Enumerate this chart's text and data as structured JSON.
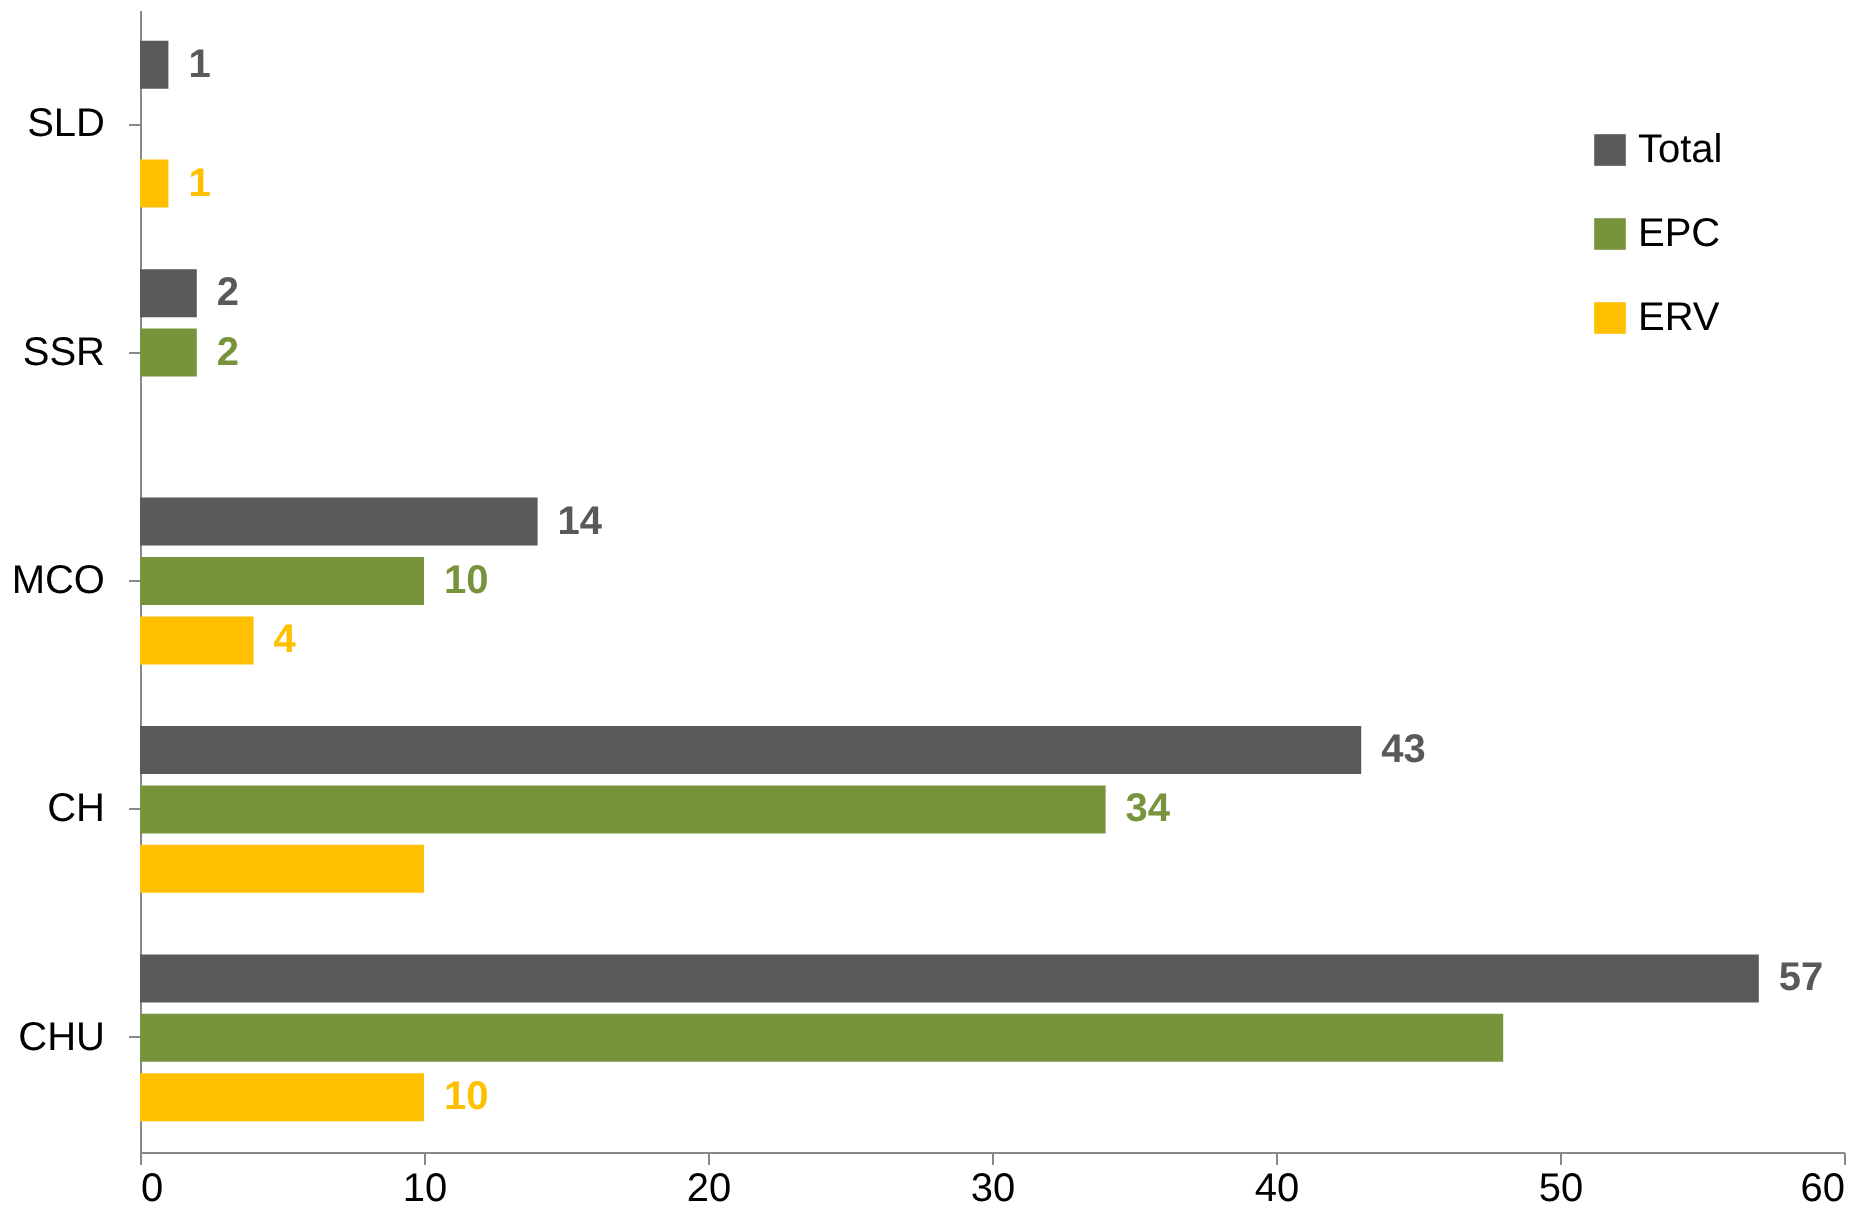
{
  "chart_data": {
    "type": "bar",
    "orientation": "horizontal",
    "categories": [
      "SLD",
      "SSR",
      "MCO",
      "CH",
      "CHU"
    ],
    "series": [
      {
        "name": "Total",
        "color": "#595959",
        "values": [
          1,
          2,
          14,
          43,
          57
        ],
        "value_labels": [
          "1",
          "2",
          "14",
          "43",
          "57"
        ]
      },
      {
        "name": "EPC",
        "color": "#77933c",
        "values": [
          null,
          2,
          10,
          34,
          48
        ],
        "value_labels": [
          null,
          "2",
          "10",
          "34",
          null
        ]
      },
      {
        "name": "ERV",
        "color": "#ffc000",
        "values": [
          1,
          null,
          4,
          10,
          10
        ],
        "value_labels": [
          "1",
          null,
          "4",
          null,
          "10"
        ]
      }
    ],
    "xlim": [
      0,
      60
    ],
    "xticks": [
      0,
      10,
      20,
      30,
      40,
      50,
      60
    ],
    "grid": false,
    "legend": "top right"
  }
}
